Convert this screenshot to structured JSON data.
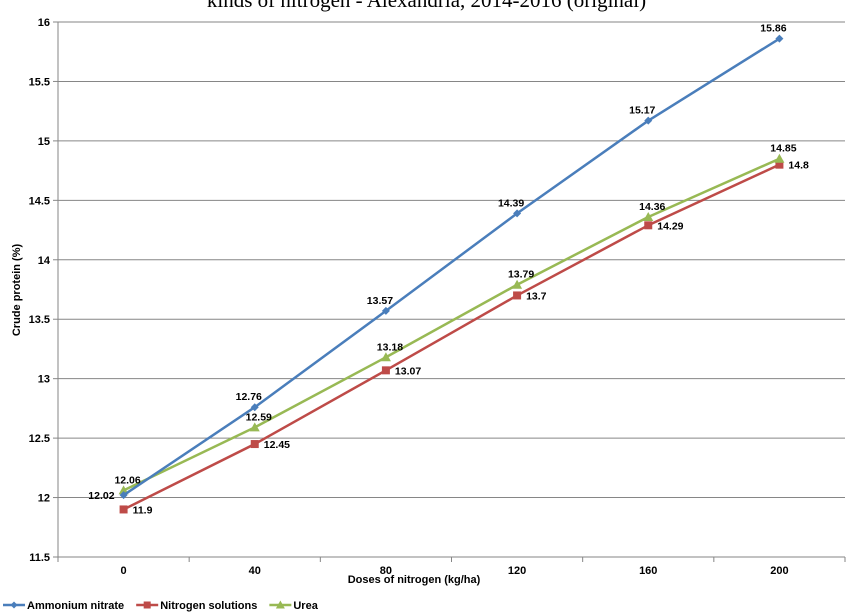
{
  "chart_data": {
    "type": "line",
    "title": "kinds of nitrogen - Alexandria, 2014-2016 (original)",
    "xlabel": "Doses of nitrogen (kg/ha)",
    "ylabel": "Crude protein (%)",
    "categories": [
      "0",
      "40",
      "80",
      "120",
      "160",
      "200"
    ],
    "ylim": [
      11.5,
      16
    ],
    "yticks": [
      "11.5",
      "12",
      "12.5",
      "13",
      "13.5",
      "14",
      "14.5",
      "15",
      "15.5",
      "16"
    ],
    "grid": true,
    "legend": "bottom",
    "series": [
      {
        "name": "Ammonium nitrate",
        "color": "#4a7ebb",
        "marker": "diamond",
        "values": [
          12.02,
          12.76,
          13.57,
          14.39,
          15.17,
          15.86
        ],
        "labels": [
          "12.02",
          "12.76",
          "13.57",
          "14.39",
          "15.17",
          "15.86"
        ]
      },
      {
        "name": "Nitrogen solutions",
        "color": "#be4b48",
        "marker": "square",
        "values": [
          11.9,
          12.45,
          13.07,
          13.7,
          14.29,
          14.8
        ],
        "labels": [
          "11.9",
          "12.45",
          "13.07",
          "13.7",
          "14.29",
          "14.8"
        ]
      },
      {
        "name": "Urea",
        "color": "#98b954",
        "marker": "triangle",
        "values": [
          12.06,
          12.59,
          13.18,
          13.79,
          14.36,
          14.85
        ],
        "labels": [
          "12.06",
          "12.59",
          "13.18",
          "13.79",
          "14.36",
          "14.85"
        ]
      }
    ]
  }
}
